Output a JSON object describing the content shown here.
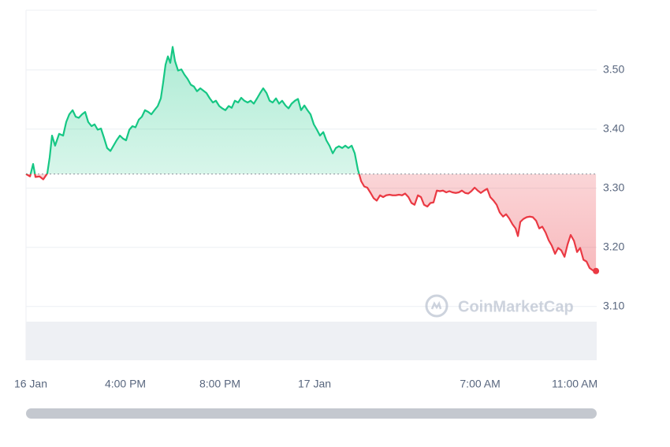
{
  "chart_data": {
    "type": "line",
    "x": [
      -0.2,
      -0.03,
      0.1,
      0.2,
      0.37,
      0.53,
      0.7,
      0.8,
      0.9,
      1.03,
      1.2,
      1.37,
      1.5,
      1.63,
      1.77,
      1.9,
      2.03,
      2.17,
      2.3,
      2.43,
      2.57,
      2.7,
      2.83,
      2.97,
      3.1,
      3.23,
      3.37,
      3.5,
      3.63,
      3.77,
      3.9,
      4.03,
      4.17,
      4.3,
      4.43,
      4.57,
      4.7,
      4.83,
      4.97,
      5.1,
      5.23,
      5.37,
      5.5,
      5.6,
      5.7,
      5.8,
      5.9,
      6,
      6.1,
      6.23,
      6.37,
      6.5,
      6.63,
      6.77,
      6.9,
      7.03,
      7.17,
      7.3,
      7.43,
      7.57,
      7.7,
      7.83,
      7.97,
      8.1,
      8.23,
      8.37,
      8.5,
      8.63,
      8.77,
      8.9,
      9.03,
      9.17,
      9.3,
      9.43,
      9.57,
      9.7,
      9.83,
      9.97,
      10.1,
      10.23,
      10.37,
      10.5,
      10.63,
      10.77,
      10.9,
      11.03,
      11.17,
      11.3,
      11.43,
      11.57,
      11.7,
      11.83,
      11.97,
      12.1,
      12.23,
      12.37,
      12.5,
      12.63,
      12.77,
      12.9,
      13.03,
      13.17,
      13.3,
      13.43,
      13.57,
      13.7,
      13.83,
      13.97,
      14.1,
      14.23,
      14.37,
      14.5,
      14.63,
      14.77,
      14.9,
      15.03,
      15.17,
      15.3,
      15.43,
      15.57,
      15.7,
      15.83,
      15.97,
      16.1,
      16.23,
      16.37,
      16.5,
      16.63,
      16.77,
      16.9,
      17.03,
      17.17,
      17.3,
      17.43,
      17.57,
      17.7,
      17.83,
      17.97,
      18.1,
      18.23,
      18.37,
      18.5,
      18.63,
      18.77,
      18.9,
      19.03,
      19.17,
      19.3,
      19.43,
      19.57,
      19.7,
      19.83,
      19.97,
      20.1,
      20.23,
      20.37,
      20.5,
      20.6,
      20.7,
      20.83,
      20.97,
      21.1,
      21.23,
      21.37,
      21.5,
      21.63,
      21.77,
      21.9,
      22.03,
      22.17,
      22.3,
      22.43,
      22.57,
      22.7,
      22.83,
      22.97,
      23.1,
      23.23,
      23.37,
      23.5,
      23.63,
      23.77,
      23.9
    ],
    "values": [
      3.324,
      3.32,
      3.341,
      3.319,
      3.32,
      3.315,
      3.325,
      3.352,
      3.389,
      3.372,
      3.392,
      3.389,
      3.412,
      3.425,
      3.432,
      3.421,
      3.419,
      3.425,
      3.429,
      3.412,
      3.405,
      3.408,
      3.399,
      3.401,
      3.385,
      3.368,
      3.363,
      3.372,
      3.381,
      3.389,
      3.384,
      3.381,
      3.399,
      3.405,
      3.403,
      3.416,
      3.421,
      3.432,
      3.429,
      3.425,
      3.432,
      3.439,
      3.452,
      3.479,
      3.509,
      3.523,
      3.512,
      3.539,
      3.515,
      3.499,
      3.501,
      3.492,
      3.485,
      3.475,
      3.472,
      3.464,
      3.469,
      3.465,
      3.461,
      3.452,
      3.445,
      3.448,
      3.439,
      3.435,
      3.432,
      3.439,
      3.436,
      3.448,
      3.445,
      3.453,
      3.448,
      3.445,
      3.448,
      3.443,
      3.452,
      3.461,
      3.469,
      3.461,
      3.448,
      3.445,
      3.452,
      3.443,
      3.448,
      3.44,
      3.435,
      3.443,
      3.448,
      3.451,
      3.432,
      3.44,
      3.432,
      3.425,
      3.408,
      3.399,
      3.389,
      3.395,
      3.381,
      3.372,
      3.359,
      3.368,
      3.371,
      3.368,
      3.372,
      3.368,
      3.372,
      3.359,
      3.332,
      3.312,
      3.303,
      3.301,
      3.292,
      3.283,
      3.279,
      3.288,
      3.285,
      3.288,
      3.289,
      3.288,
      3.288,
      3.289,
      3.288,
      3.291,
      3.285,
      3.275,
      3.272,
      3.288,
      3.285,
      3.272,
      3.269,
      3.275,
      3.276,
      3.296,
      3.295,
      3.296,
      3.293,
      3.295,
      3.293,
      3.292,
      3.293,
      3.296,
      3.292,
      3.291,
      3.295,
      3.301,
      3.296,
      3.292,
      3.296,
      3.299,
      3.285,
      3.279,
      3.272,
      3.259,
      3.252,
      3.256,
      3.249,
      3.239,
      3.232,
      3.219,
      3.243,
      3.248,
      3.251,
      3.252,
      3.251,
      3.245,
      3.232,
      3.235,
      3.225,
      3.212,
      3.203,
      3.189,
      3.199,
      3.195,
      3.184,
      3.205,
      3.221,
      3.211,
      3.192,
      3.199,
      3.179,
      3.176,
      3.165,
      3.161,
      3.16
    ],
    "baseline": 3.324,
    "colors": {
      "above": "#16c784",
      "below": "#ea3943"
    },
    "xlim": [
      -0.2,
      23.93
    ],
    "xticks": [
      {
        "value": 0,
        "label": "16 Jan"
      },
      {
        "value": 4,
        "label": "4:00 PM"
      },
      {
        "value": 8,
        "label": "8:00 PM"
      },
      {
        "value": 12,
        "label": "17 Jan"
      },
      {
        "value": 19,
        "label": "7:00 AM"
      },
      {
        "value": 23,
        "label": "11:00 AM"
      }
    ],
    "ylim": [
      3.009,
      3.601
    ],
    "yticks": [
      {
        "value": 3.1,
        "label": "3.10"
      },
      {
        "value": 3.2,
        "label": "3.20"
      },
      {
        "value": 3.3,
        "label": "3.30"
      },
      {
        "value": 3.4,
        "label": "3.40"
      },
      {
        "value": 3.5,
        "label": "3.50"
      }
    ],
    "grid": true,
    "watermark": "CoinMarketCap"
  }
}
